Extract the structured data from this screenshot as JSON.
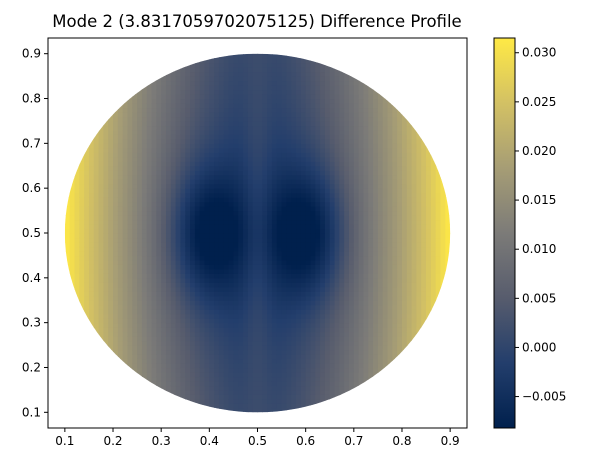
{
  "chart_data": {
    "type": "heatmap",
    "title": "Mode 2 (3.8317059702075125) Difference Profile",
    "xlabel": "",
    "ylabel": "",
    "x_ticks": [
      "0.1",
      "0.2",
      "0.3",
      "0.4",
      "0.5",
      "0.6",
      "0.7",
      "0.8",
      "0.9"
    ],
    "y_ticks": [
      "0.1",
      "0.2",
      "0.3",
      "0.4",
      "0.5",
      "0.6",
      "0.7",
      "0.8",
      "0.9"
    ],
    "xlim": [
      0.065,
      0.935
    ],
    "ylim": [
      0.065,
      0.935
    ],
    "domain": {
      "shape": "disk",
      "center": [
        0.5,
        0.5
      ],
      "radius": 0.4
    },
    "colormap": "cividis",
    "colormap_stops": [
      "#00204d",
      "#233e6c",
      "#575c6d",
      "#7c7b78",
      "#a69d75",
      "#d3c164",
      "#ffe945"
    ],
    "colorbar": {
      "vmin": -0.0082,
      "vmax": 0.0315,
      "ticks": [
        "−0.005",
        "0.000",
        "0.005",
        "0.010",
        "0.015",
        "0.020",
        "0.025",
        "0.030"
      ],
      "tick_values": [
        -0.005,
        0.0,
        0.005,
        0.01,
        0.015,
        0.02,
        0.025,
        0.03
      ]
    },
    "field_points": [
      {
        "x": 0.4,
        "y": 0.5,
        "value": -0.008
      },
      {
        "x": 0.6,
        "y": 0.5,
        "value": -0.008
      },
      {
        "x": 0.5,
        "y": 0.5,
        "value": 0.006
      },
      {
        "x": 0.5,
        "y": 0.88,
        "value": 0.0
      },
      {
        "x": 0.5,
        "y": 0.12,
        "value": 0.002
      },
      {
        "x": 0.12,
        "y": 0.5,
        "value": 0.031
      },
      {
        "x": 0.88,
        "y": 0.5,
        "value": 0.031
      }
    ]
  }
}
